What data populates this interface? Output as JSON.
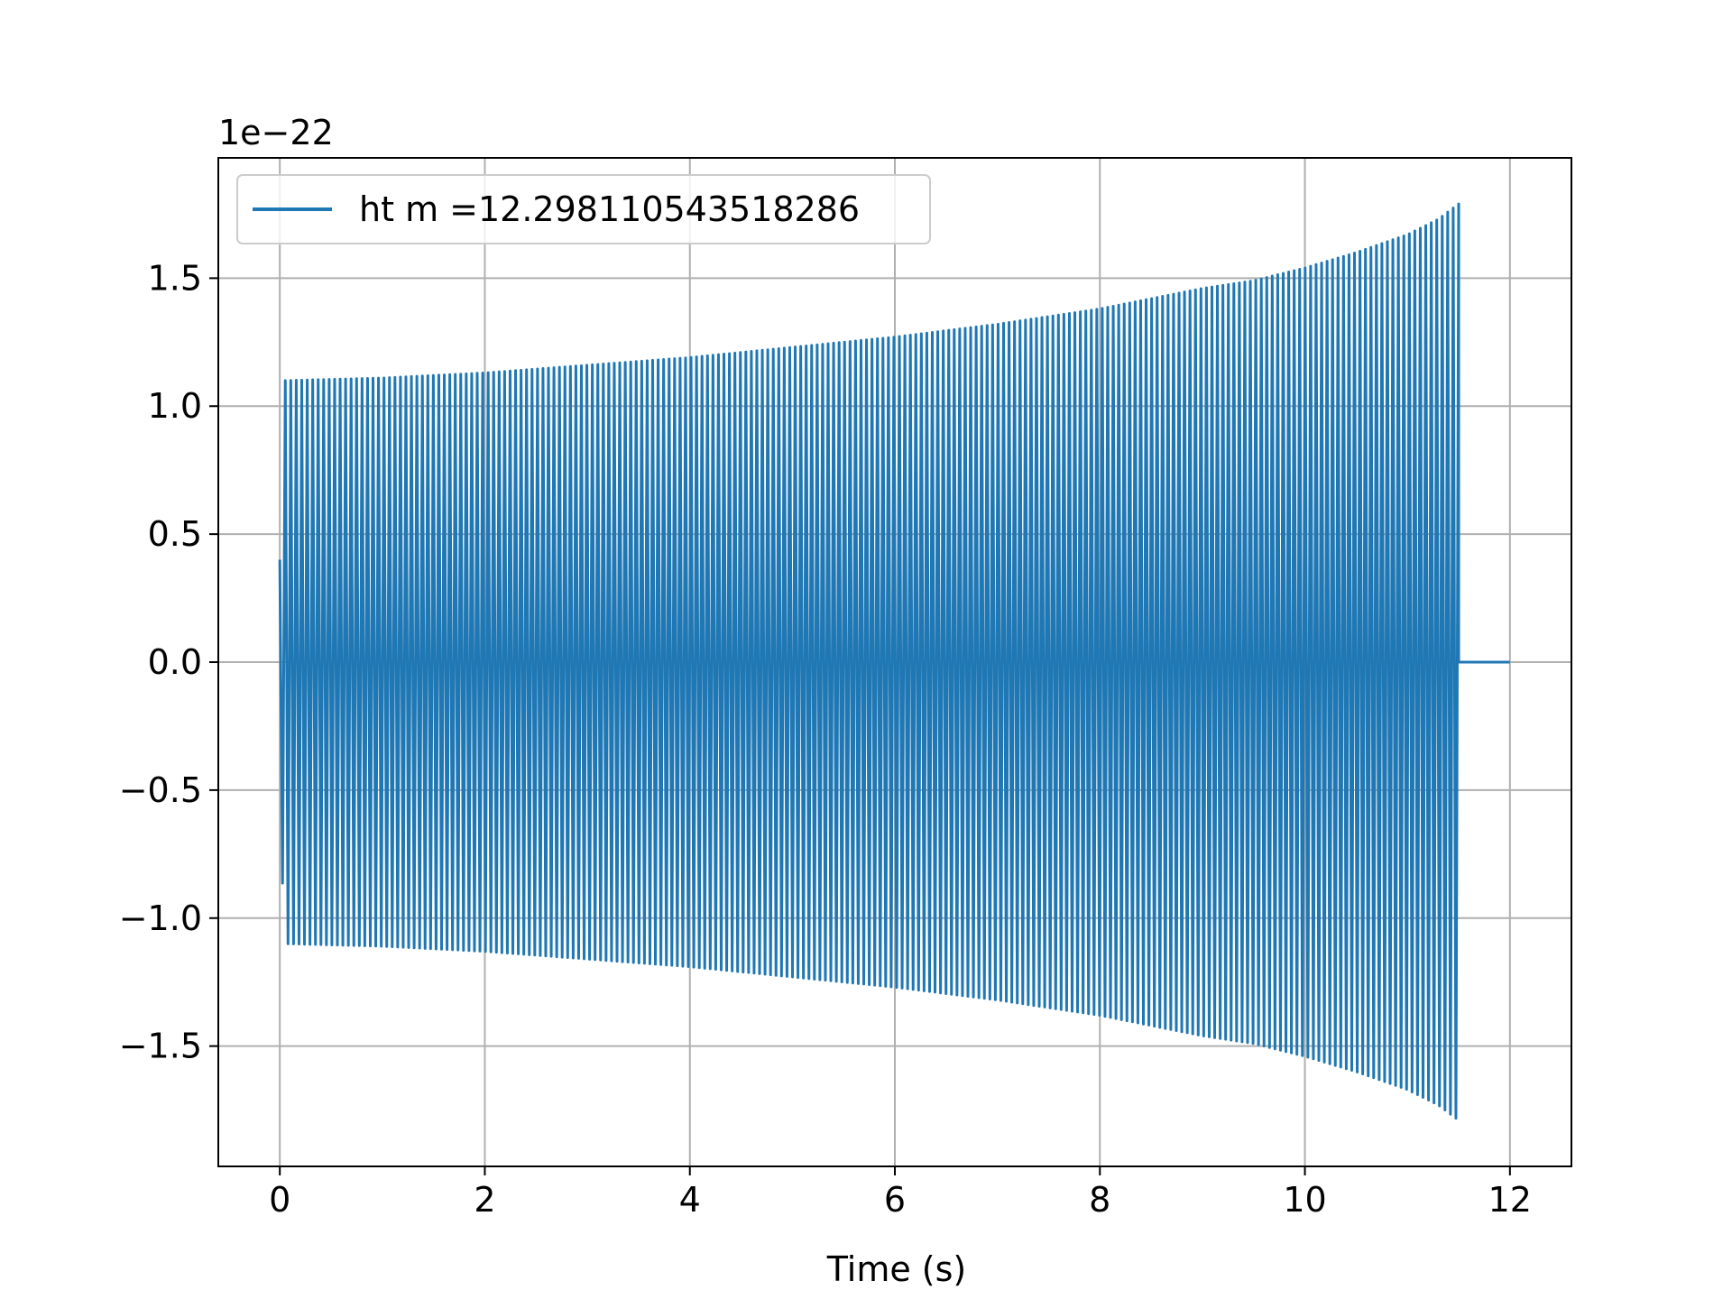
{
  "chart_data": {
    "type": "line",
    "title": "",
    "xlabel": "Time (s)",
    "ylabel": "",
    "y_offset_label": "1e−22",
    "xlim": [
      -0.6,
      12.6
    ],
    "ylim": [
      -1.97,
      1.97
    ],
    "xticks": [
      0,
      2,
      4,
      6,
      8,
      10,
      12
    ],
    "xtick_labels": [
      "0",
      "2",
      "4",
      "6",
      "8",
      "10",
      "12"
    ],
    "yticks": [
      -1.5,
      -1.0,
      -0.5,
      0.0,
      0.5,
      1.0,
      1.5
    ],
    "ytick_labels": [
      "−1.5",
      "−1.0",
      "−0.5",
      "0.0",
      "0.5",
      "1.0",
      "1.5"
    ],
    "grid": true,
    "legend_position": "top-left",
    "series": [
      {
        "name": "ht m =12.298110543518286",
        "color": "#1f77b4",
        "signal_start": 0.0,
        "signal_end": 11.5,
        "data_end": 12.0,
        "envelope_x": [
          0.0,
          0.03,
          0.05,
          1,
          2,
          3,
          4,
          5,
          6,
          7,
          8,
          9,
          9.5,
          10,
          10.5,
          11,
          11.3,
          11.5
        ],
        "envelope_y": [
          0.4,
          0.92,
          1.1,
          1.11,
          1.13,
          1.16,
          1.19,
          1.23,
          1.27,
          1.32,
          1.38,
          1.46,
          1.49,
          1.54,
          1.6,
          1.67,
          1.73,
          1.79
        ],
        "oscillation_count": 215
      }
    ]
  }
}
